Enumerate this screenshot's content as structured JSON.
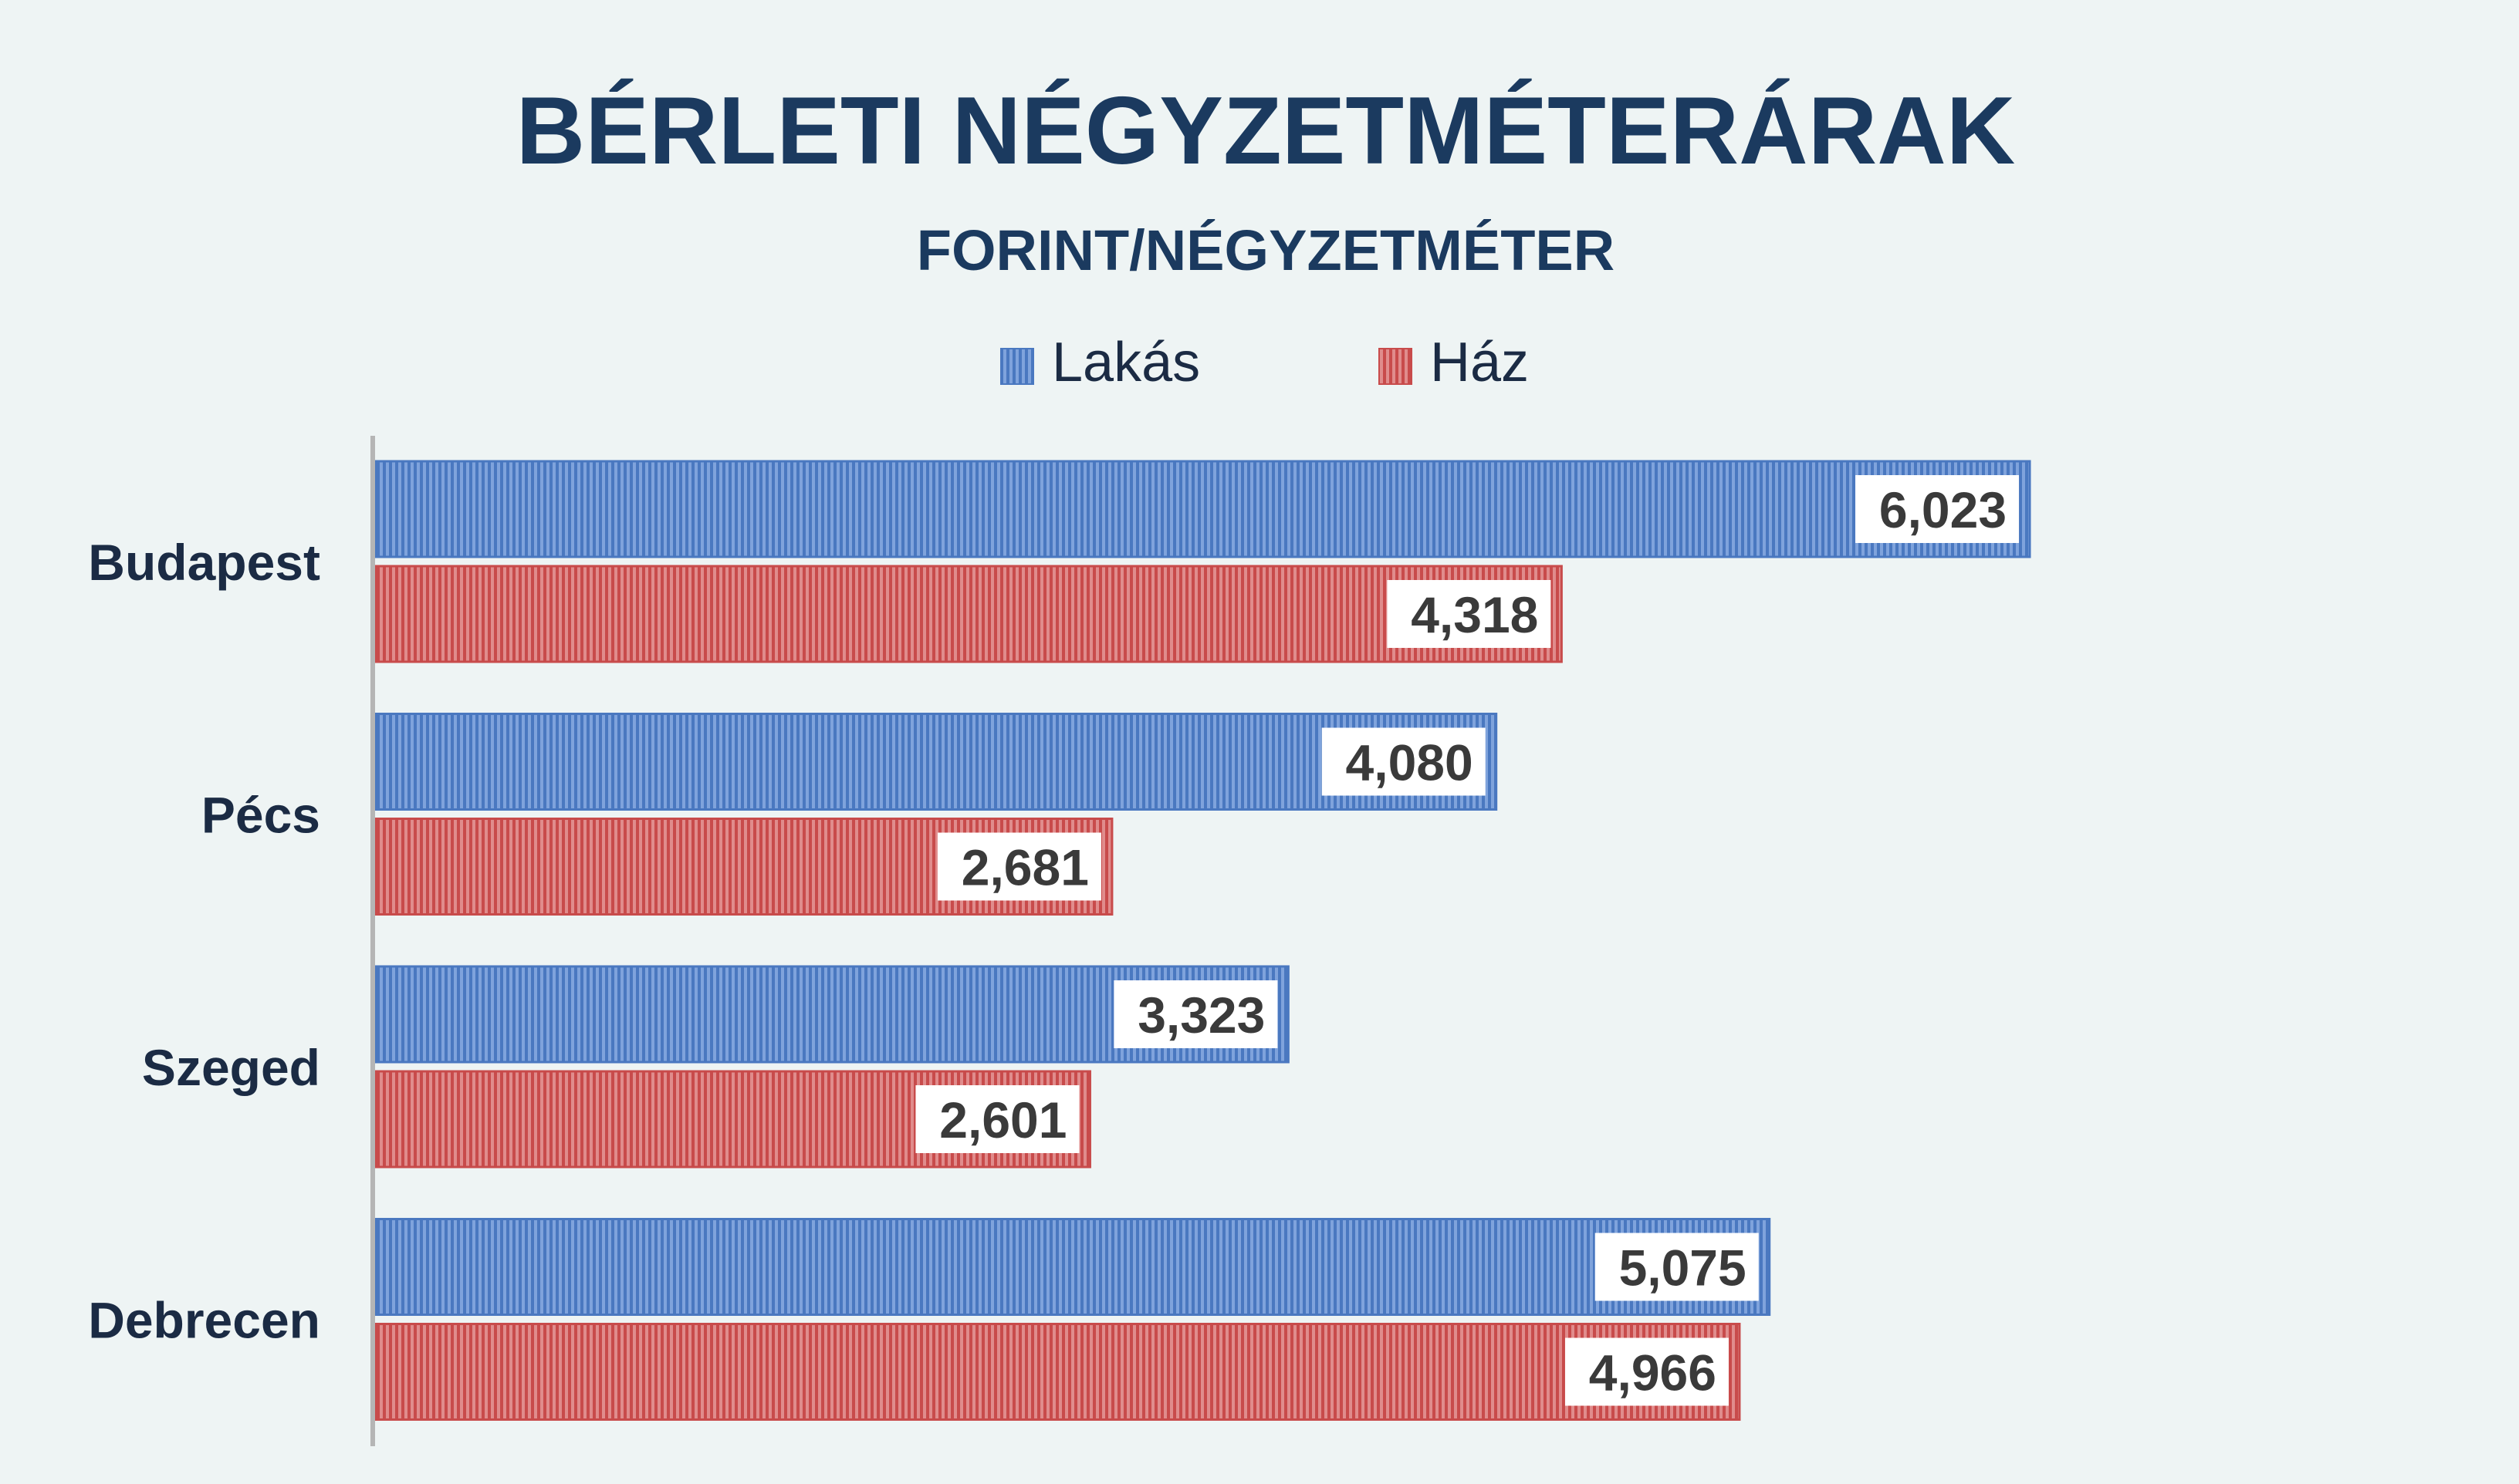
{
  "chart_data": {
    "type": "bar",
    "orientation": "horizontal",
    "title": "BÉRLETI NÉGYZETMÉTERÁRAK",
    "subtitle": "FORINT/NÉGYZETMÉTER",
    "categories": [
      "Budapest",
      "Pécs",
      "Szeged",
      "Debrecen"
    ],
    "series": [
      {
        "name": "Lakás",
        "values": [
          6023,
          4080,
          3323,
          5075
        ],
        "labels": [
          "6,023",
          "4,080",
          "3,323",
          "5,075"
        ],
        "color": "#4a78c0"
      },
      {
        "name": "Ház",
        "values": [
          4318,
          2681,
          2601,
          4966
        ],
        "labels": [
          "4,318",
          "2,681",
          "2,601",
          "4,966"
        ],
        "color": "#c84b4b"
      }
    ],
    "xlim": [
      0,
      7400
    ],
    "grid": false,
    "legend_position": "top",
    "data_labels": true
  }
}
